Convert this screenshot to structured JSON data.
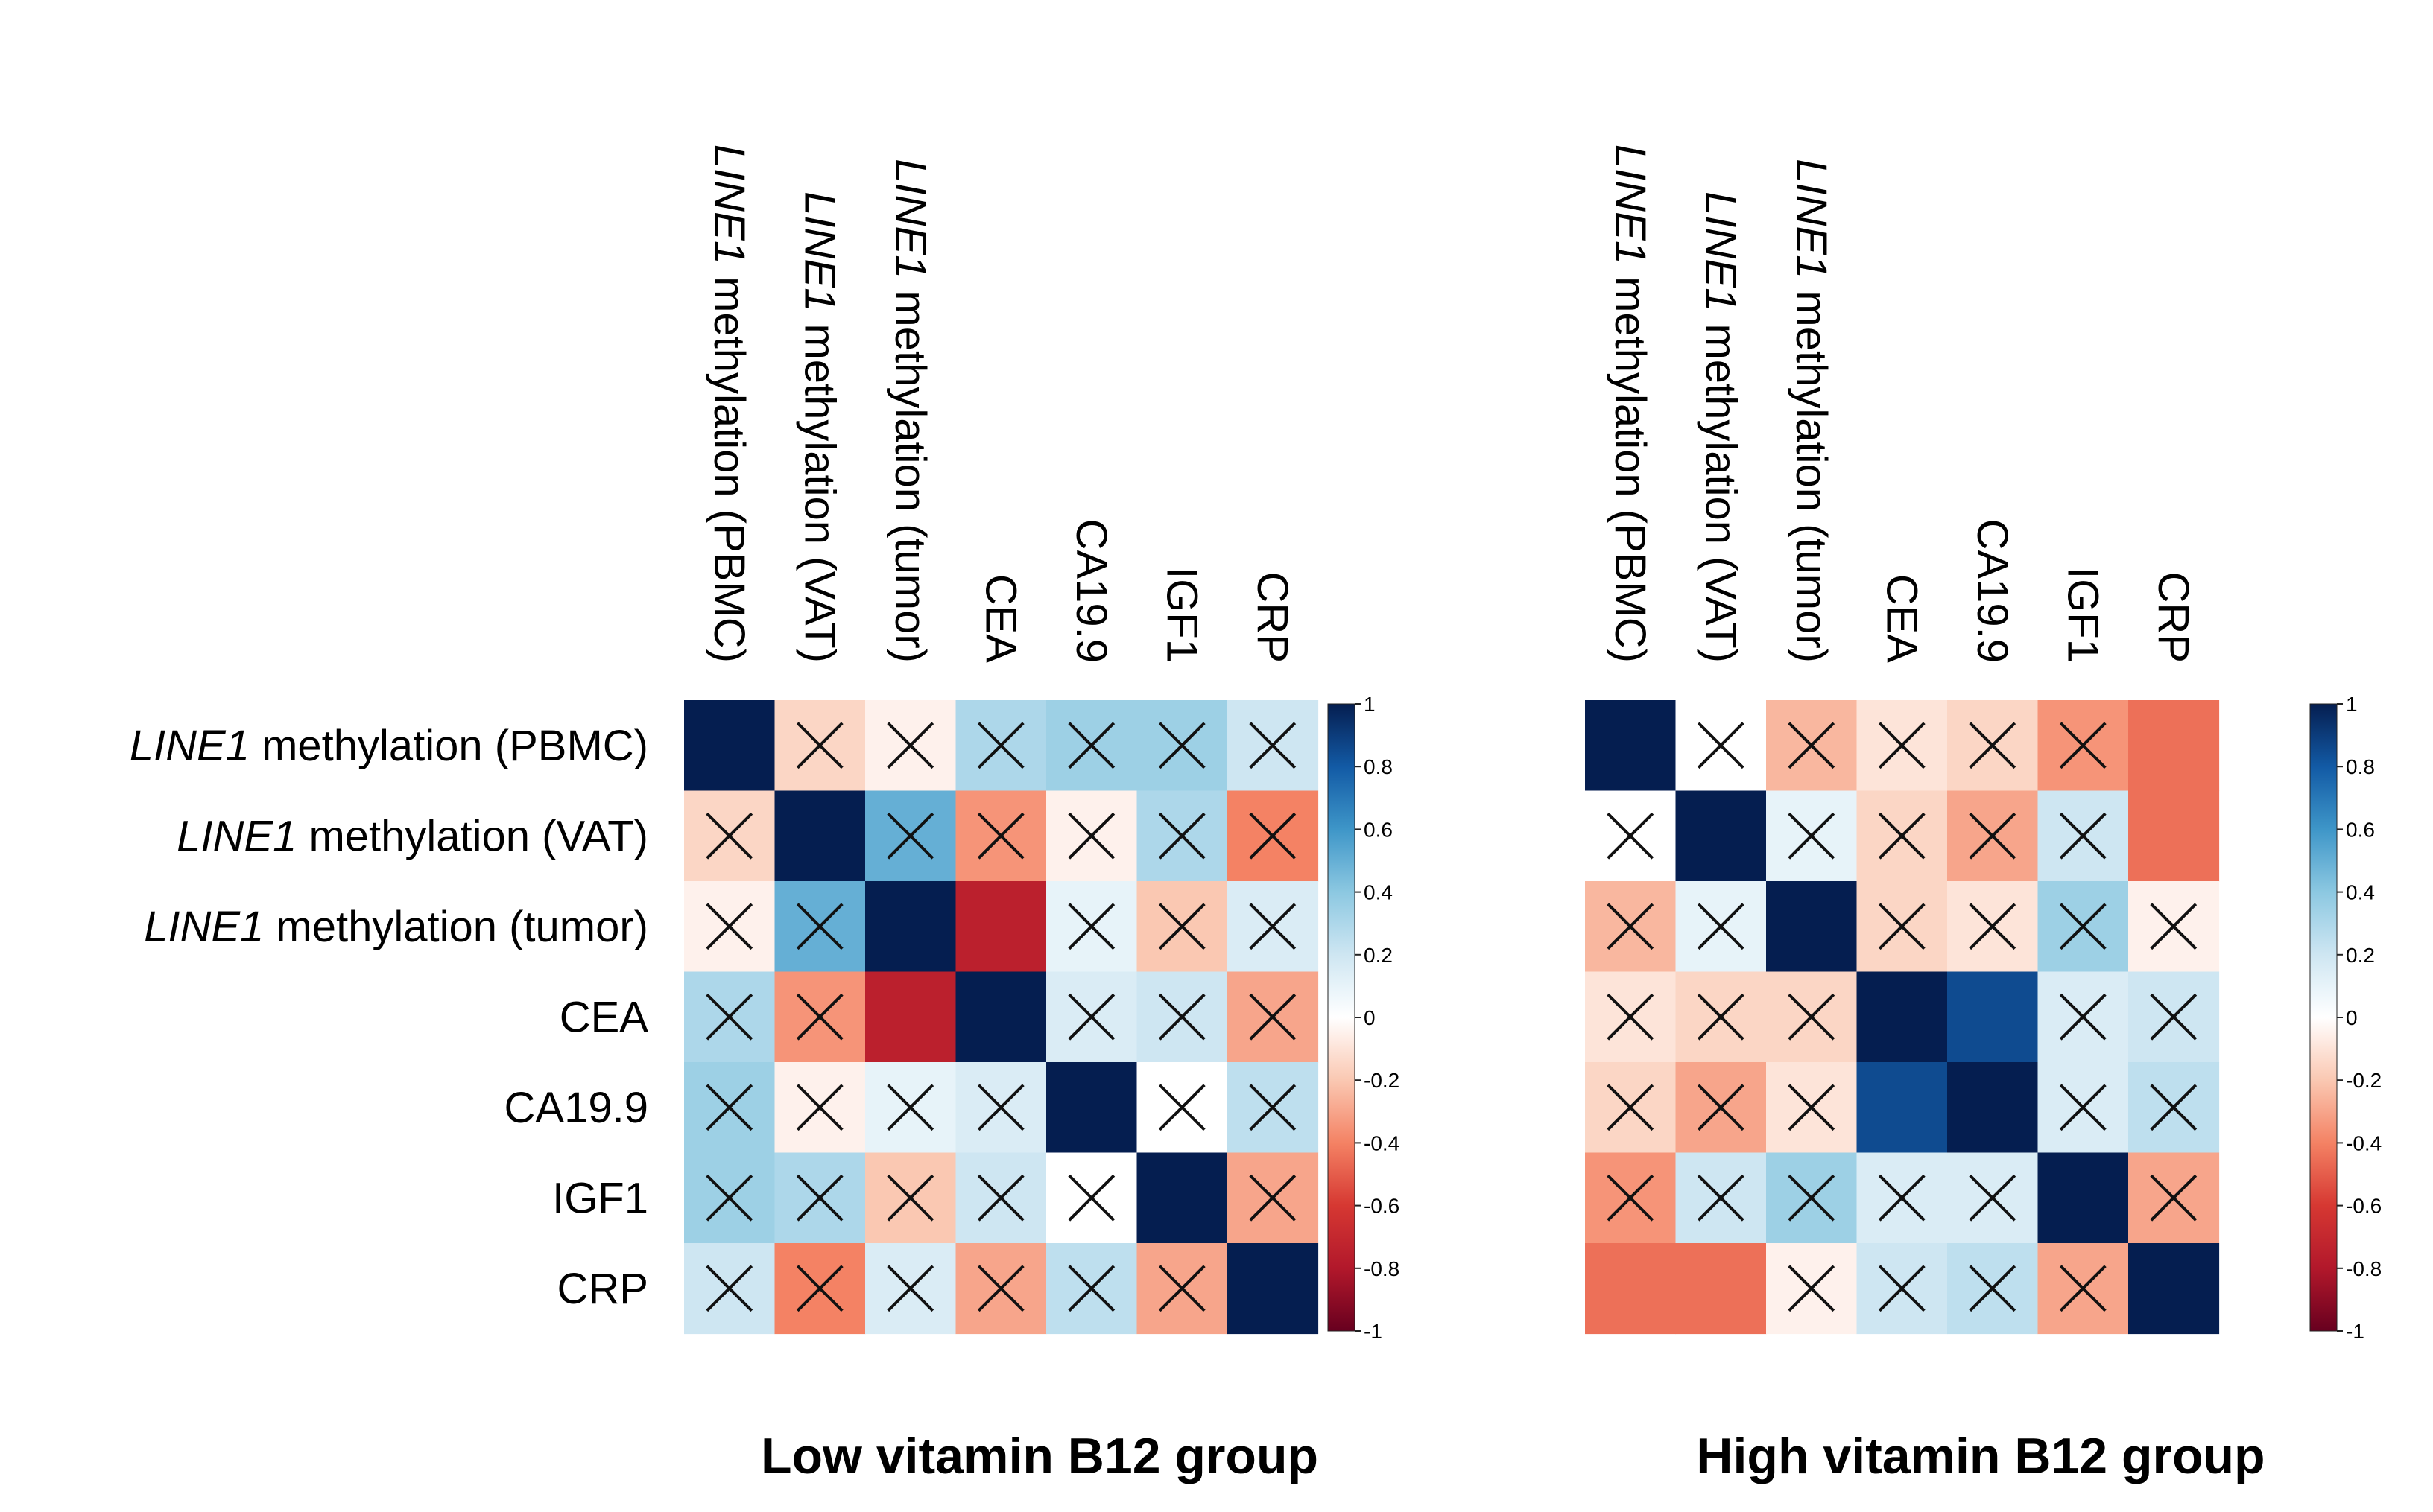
{
  "figure": {
    "panels": [
      "Low vitamin B12 group",
      "High vitamin B12 group"
    ]
  },
  "chart_data": [
    {
      "type": "heatmap",
      "title": "Low vitamin B12 group",
      "variables": [
        {
          "prefix": "LINE1",
          "text": " methylation (PBMC)"
        },
        {
          "prefix": "LINE1",
          "text": " methylation (VAT)"
        },
        {
          "prefix": "LINE1",
          "text": " methylation (tumor)"
        },
        {
          "prefix": "",
          "text": "CEA"
        },
        {
          "prefix": "",
          "text": "CA19.9"
        },
        {
          "prefix": "",
          "text": "IGF1"
        },
        {
          "prefix": "",
          "text": "CRP"
        }
      ],
      "matrix": [
        [
          1,
          -0.15,
          -0.05,
          0.3,
          0.35,
          0.35,
          0.2
        ],
        [
          -0.15,
          1,
          0.5,
          -0.35,
          -0.05,
          0.3,
          -0.4
        ],
        [
          -0.05,
          0.5,
          1,
          -0.75,
          0.1,
          -0.2,
          0.15
        ],
        [
          0.3,
          -0.35,
          -0.75,
          1,
          0.15,
          0.2,
          -0.3
        ],
        [
          0.35,
          -0.05,
          0.1,
          0.15,
          1,
          0.0,
          0.25
        ],
        [
          0.35,
          0.3,
          -0.2,
          0.2,
          0.0,
          1,
          -0.3
        ],
        [
          0.2,
          -0.4,
          0.15,
          -0.3,
          0.25,
          -0.3,
          1
        ]
      ],
      "not_significant": [
        [
          false,
          true,
          true,
          true,
          true,
          true,
          true
        ],
        [
          true,
          false,
          true,
          true,
          true,
          true,
          true
        ],
        [
          true,
          true,
          false,
          false,
          true,
          true,
          true
        ],
        [
          true,
          true,
          false,
          false,
          true,
          true,
          true
        ],
        [
          true,
          true,
          true,
          true,
          false,
          true,
          true
        ],
        [
          true,
          true,
          true,
          true,
          true,
          false,
          true
        ],
        [
          true,
          true,
          true,
          true,
          true,
          true,
          false
        ]
      ],
      "colorbar": {
        "range": [
          -1,
          1
        ],
        "ticks": [
          "1",
          "0.8",
          "0.6",
          "0.4",
          "0.2",
          "0",
          "-0.2",
          "-0.4",
          "-0.6",
          "-0.8",
          "-1"
        ]
      }
    },
    {
      "type": "heatmap",
      "title": "High vitamin B12 group",
      "variables": [
        {
          "prefix": "LINE1",
          "text": " methylation (PBMC)"
        },
        {
          "prefix": "LINE1",
          "text": " methylation (VAT)"
        },
        {
          "prefix": "LINE1",
          "text": " methylation (tumor)"
        },
        {
          "prefix": "",
          "text": "CEA"
        },
        {
          "prefix": "",
          "text": "CA19.9"
        },
        {
          "prefix": "",
          "text": "IGF1"
        },
        {
          "prefix": "",
          "text": "CRP"
        }
      ],
      "matrix": [
        [
          1,
          0.0,
          -0.25,
          -0.1,
          -0.15,
          -0.35,
          -0.45
        ],
        [
          0.0,
          1,
          0.1,
          -0.15,
          -0.3,
          0.2,
          -0.45
        ],
        [
          -0.25,
          0.1,
          1,
          -0.15,
          -0.1,
          0.35,
          -0.05
        ],
        [
          -0.1,
          -0.15,
          -0.15,
          1,
          0.85,
          0.15,
          0.2
        ],
        [
          -0.15,
          -0.3,
          -0.1,
          0.85,
          1,
          0.15,
          0.25
        ],
        [
          -0.35,
          0.2,
          0.35,
          0.15,
          0.15,
          1,
          -0.3
        ],
        [
          -0.45,
          -0.45,
          -0.05,
          0.2,
          0.25,
          -0.3,
          1
        ]
      ],
      "not_significant": [
        [
          false,
          true,
          true,
          true,
          true,
          true,
          false
        ],
        [
          true,
          false,
          true,
          true,
          true,
          true,
          false
        ],
        [
          true,
          true,
          false,
          true,
          true,
          true,
          true
        ],
        [
          true,
          true,
          true,
          false,
          false,
          true,
          true
        ],
        [
          true,
          true,
          true,
          false,
          false,
          true,
          true
        ],
        [
          true,
          true,
          true,
          true,
          true,
          false,
          true
        ],
        [
          false,
          false,
          true,
          true,
          true,
          true,
          false
        ]
      ],
      "colorbar": {
        "range": [
          -1,
          1
        ],
        "ticks": [
          "1",
          "0.8",
          "0.6",
          "0.4",
          "0.2",
          "0",
          "-0.2",
          "-0.4",
          "-0.6",
          "-0.8",
          "-1"
        ]
      }
    }
  ]
}
